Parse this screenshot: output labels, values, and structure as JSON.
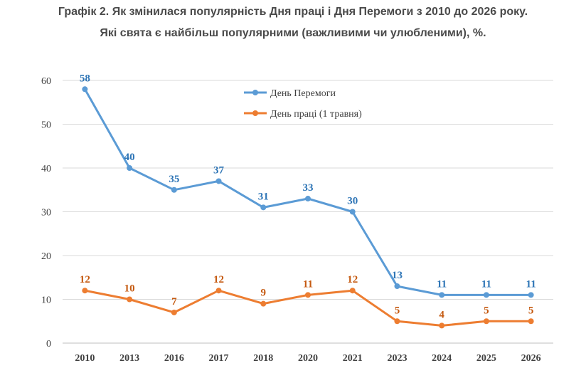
{
  "chart_data": {
    "type": "line",
    "title": "Графік 2. Як змінилася популярність Дня праці і Дня Перемоги з 2010 до 2026 року.",
    "subtitle": "Які свята є найбільш популярними (важливими чи улюбленими), %.",
    "categories": [
      "2010",
      "2013",
      "2016",
      "2017",
      "2018",
      "2020",
      "2021",
      "2023",
      "2024",
      "2025",
      "2026"
    ],
    "ylim": [
      0,
      60
    ],
    "yticks": [
      "0",
      "10",
      "20",
      "30",
      "40",
      "50",
      "60"
    ],
    "grid": true,
    "legend_position": "top-right",
    "series": [
      {
        "name": "День Перемоги",
        "color": "#5b9bd5",
        "label_color": "#2e75b6",
        "values": [
          58,
          40,
          35,
          37,
          31,
          33,
          30,
          13,
          11,
          11,
          11
        ]
      },
      {
        "name": "День праці (1 травня)",
        "color": "#ed7d31",
        "label_color": "#c55a11",
        "values": [
          12,
          10,
          7,
          12,
          9,
          11,
          12,
          5,
          4,
          5,
          5
        ]
      }
    ]
  }
}
